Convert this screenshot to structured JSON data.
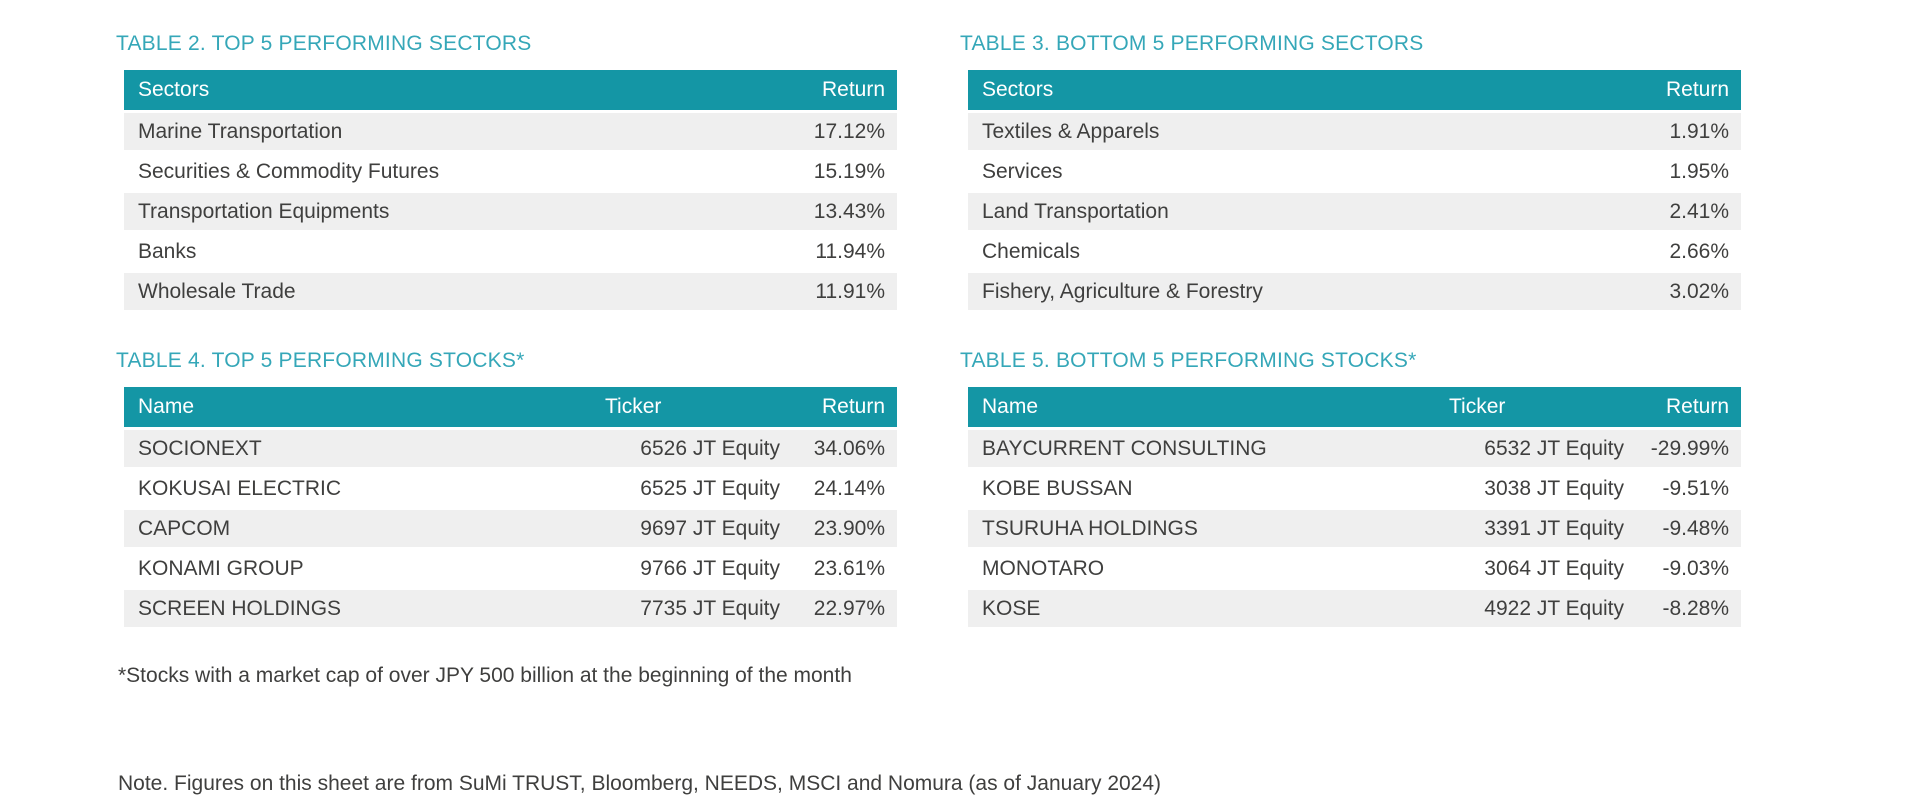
{
  "colors": {
    "header_bg": "#1496A5",
    "title_text": "#35A7B8",
    "row_alt_bg": "#EFEFEF",
    "body_text": "#3F3F3E",
    "header_text": "#FFFFFF"
  },
  "tables": [
    {
      "title": "TABLE 2. TOP 5 PERFORMING SECTORS",
      "columns": [
        "Sectors",
        "Return"
      ],
      "rows": [
        [
          "Marine Transportation",
          "17.12%"
        ],
        [
          "Securities & Commodity Futures",
          "15.19%"
        ],
        [
          "Transportation Equipments",
          "13.43%"
        ],
        [
          "Banks",
          "11.94%"
        ],
        [
          "Wholesale Trade",
          "11.91%"
        ]
      ]
    },
    {
      "title": "TABLE 3. BOTTOM 5 PERFORMING SECTORS",
      "columns": [
        "Sectors",
        "Return"
      ],
      "rows": [
        [
          "Textiles & Apparels",
          "1.91%"
        ],
        [
          "Services",
          "1.95%"
        ],
        [
          "Land Transportation",
          "2.41%"
        ],
        [
          "Chemicals",
          "2.66%"
        ],
        [
          "Fishery, Agriculture & Forestry",
          "3.02%"
        ]
      ]
    },
    {
      "title": "TABLE 4. TOP 5 PERFORMING STOCKS*",
      "columns": [
        "Name",
        "Ticker",
        "Return"
      ],
      "rows": [
        [
          "SOCIONEXT",
          "6526 JT Equity",
          "34.06%"
        ],
        [
          "KOKUSAI ELECTRIC",
          "6525 JT Equity",
          "24.14%"
        ],
        [
          "CAPCOM",
          "9697 JT Equity",
          "23.90%"
        ],
        [
          "KONAMI GROUP",
          "9766 JT Equity",
          "23.61%"
        ],
        [
          "SCREEN HOLDINGS",
          "7735 JT Equity",
          "22.97%"
        ]
      ]
    },
    {
      "title": "TABLE 5. BOTTOM 5 PERFORMING STOCKS*",
      "columns": [
        "Name",
        "Ticker",
        "Return"
      ],
      "rows": [
        [
          "BAYCURRENT CONSULTING",
          "6532 JT Equity",
          "-29.99%"
        ],
        [
          "KOBE BUSSAN",
          "3038 JT Equity",
          "-9.51%"
        ],
        [
          "TSURUHA HOLDINGS",
          "3391 JT Equity",
          "-9.48%"
        ],
        [
          "MONOTARO",
          "3064 JT Equity",
          "-9.03%"
        ],
        [
          "KOSE",
          "4922 JT Equity",
          "-8.28%"
        ]
      ]
    }
  ],
  "footnote": "*Stocks with a market cap of over JPY 500 billion at the beginning of the month",
  "note": "Note. Figures on this sheet are from SuMi TRUST, Bloomberg, NEEDS, MSCI and Nomura (as of January 2024)"
}
